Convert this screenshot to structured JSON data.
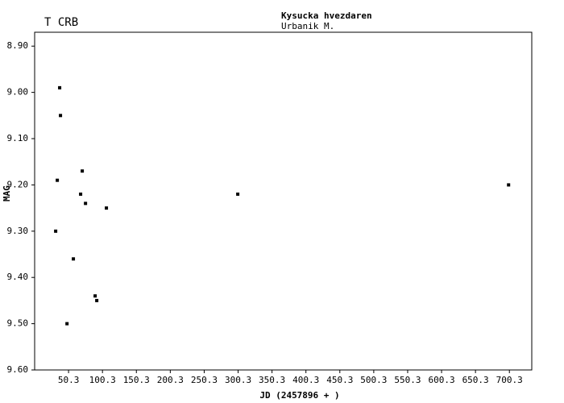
{
  "chart_data": {
    "type": "scatter",
    "title": "T CRB",
    "title_color": "#0000cc",
    "subtitle": "Kysucka hvezdaren",
    "author": "Urbanik M.",
    "xlabel": "JD (2457896 + )",
    "ylabel": "MAG",
    "x": [
      37.2,
      38.4,
      33.7,
      31.3,
      70.5,
      68.1,
      75.3,
      106.1,
      57.4,
      89.5,
      91.9,
      48.0,
      299.8,
      699.1
    ],
    "series": [
      {
        "name": "T CRB",
        "color": "#000000",
        "values": [
          8.99,
          9.05,
          9.19,
          9.3,
          9.17,
          9.22,
          9.24,
          9.25,
          9.36,
          9.44,
          9.45,
          9.5,
          9.22,
          9.2
        ]
      }
    ],
    "xlim": [
      0.3,
      733.3
    ],
    "xticks": [
      50.3,
      100.3,
      150.3,
      200.3,
      250.3,
      300.3,
      350.3,
      400.3,
      450.3,
      500.3,
      550.3,
      600.3,
      650.3,
      700.3
    ],
    "ylim": [
      9.6,
      8.87
    ],
    "yticks": [
      {
        "value": 8.9,
        "label": "8.90"
      },
      {
        "value": 9.0,
        "label": "9.00"
      },
      {
        "value": 9.1,
        "label": "9.10"
      },
      {
        "value": 9.2,
        "label": "9.20"
      },
      {
        "value": 9.3,
        "label": "9.30"
      },
      {
        "value": 9.4,
        "label": "9.40"
      },
      {
        "value": 9.5,
        "label": "9.50"
      },
      {
        "value": 9.6,
        "label": "9.60"
      }
    ],
    "grid": false
  }
}
